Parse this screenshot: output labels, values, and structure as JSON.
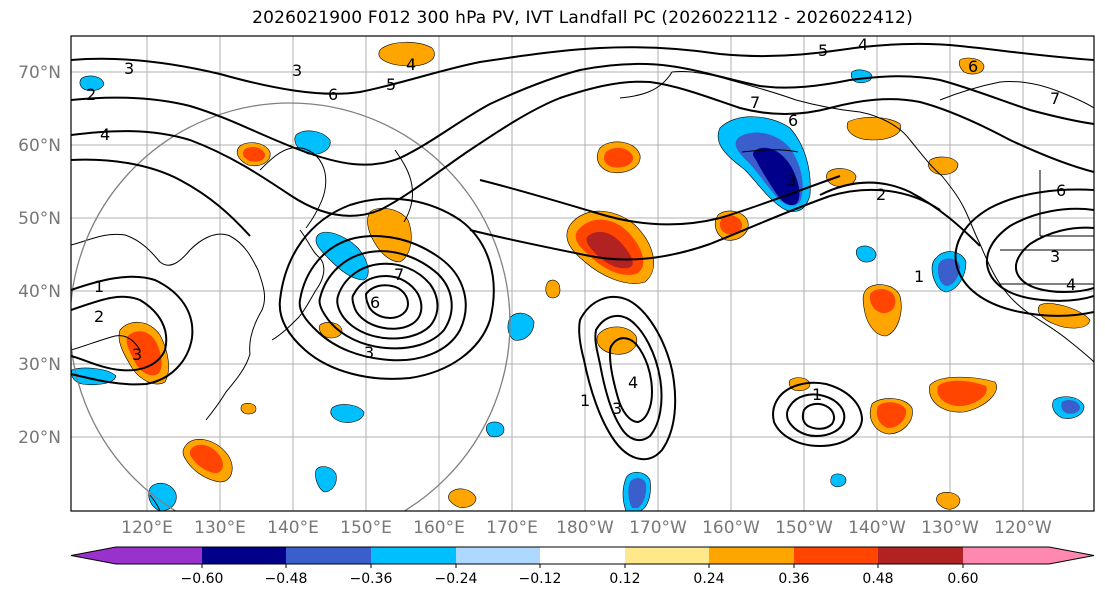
{
  "title": "2026021900 F012 300 hPa PV, IVT Landfall PC (2026022112 - 2026022412)",
  "lat_labels": [
    "70°N",
    "60°N",
    "50°N",
    "40°N",
    "30°N",
    "20°N"
  ],
  "lon_labels": [
    "120°E",
    "130°E",
    "140°E",
    "150°E",
    "160°E",
    "170°E",
    "180°W",
    "170°W",
    "160°W",
    "150°W",
    "140°W",
    "130°W",
    "120°W"
  ],
  "colorbar": {
    "colors": [
      "#9932cc",
      "#00008b",
      "#3a5fcd",
      "#00bfff",
      "#add8ff",
      "#ffffff",
      "#ffe88a",
      "#ffa500",
      "#ff4500",
      "#b22222",
      "#ff88b0"
    ],
    "ticks": [
      "−0.60",
      "−0.48",
      "−0.36",
      "−0.24",
      "−0.12",
      "0.12",
      "0.24",
      "0.36",
      "0.48",
      "0.60"
    ]
  },
  "pv_contour_labels": [
    "1",
    "2",
    "3",
    "4",
    "5",
    "6",
    "7"
  ],
  "map_features": {
    "circle": "gray circle centered near 141°E 40°N",
    "fields": "shaded PC anomaly, black PV contours, coastlines, graticule"
  }
}
